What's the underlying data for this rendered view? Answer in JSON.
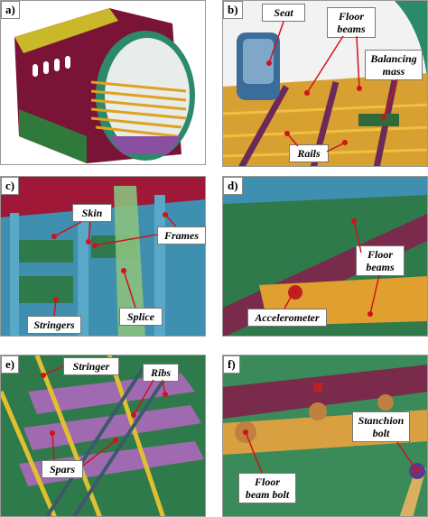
{
  "panels": [
    {
      "tag": "a)",
      "labels": []
    },
    {
      "tag": "b)",
      "labels": [
        "Seat",
        "Floor beams",
        "Balancing mass",
        "Rails"
      ]
    },
    {
      "tag": "c)",
      "labels": [
        "Skin",
        "Frames",
        "Stringers",
        "Splice"
      ]
    },
    {
      "tag": "d)",
      "labels": [
        "Floor beams",
        "Accelerometer"
      ]
    },
    {
      "tag": "e)",
      "labels": [
        "Stringer",
        "Ribs",
        "Spars"
      ]
    },
    {
      "tag": "f)",
      "labels": [
        "Stanchion bolt",
        "Floor beam bolt"
      ]
    }
  ]
}
